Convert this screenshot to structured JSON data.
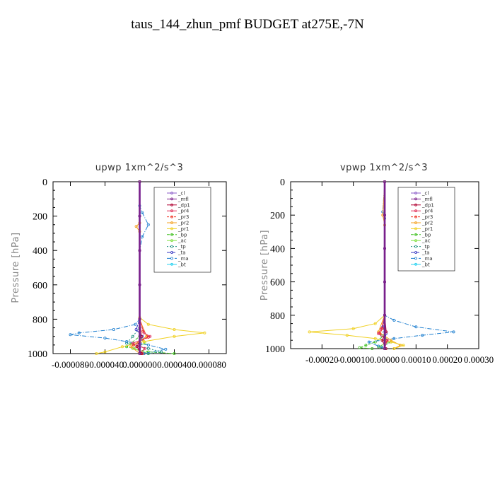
{
  "title": "taus_144_zhun_pmf  BUDGET at275E,-7N",
  "colors": {
    "_cl": "#8b5cc8",
    "_mfl": "#7a1f8a",
    "_dp1": "#b00030",
    "_pr4": "#e0305a",
    "_pr3": "#f03020",
    "_pr2": "#f4a020",
    "_pr1": "#f0d020",
    "_bp": "#40c020",
    "_ac": "#80e040",
    "_tp": "#209080",
    "_ta": "#3030c0",
    "_ma": "#2080d0",
    "_bt": "#20d0f0"
  },
  "chart_data": [
    {
      "type": "line",
      "title": "upwp   1xm^2/s^3",
      "ylabel": "Pressure [hPa]",
      "xlim": [
        -0.0001,
        0.0001
      ],
      "ylim": [
        1000,
        0
      ],
      "y_ticks": [
        0,
        200,
        400,
        600,
        800,
        1000
      ],
      "x_ticks": [
        -8e-05,
        -4e-05,
        0,
        4e-05,
        8e-05
      ],
      "x_tick_labels": [
        "-0.000080",
        "-0.000040",
        "0.000000",
        "0.000040",
        "0.000080"
      ],
      "legend": [
        "_cl",
        "_mfl",
        "_dp1",
        "_pr4",
        "_pr3",
        "_pr2",
        "_pr1",
        "_bp",
        "_ac",
        "_tp",
        "_ta",
        "_ma",
        "_bt"
      ],
      "legend_position": "top-right",
      "series": [
        {
          "name": "_cl",
          "points": [
            [
              0,
              0
            ],
            [
              0,
              200
            ],
            [
              0,
              400
            ],
            [
              0,
              600
            ],
            [
              0,
              800
            ],
            [
              0,
              1000
            ]
          ]
        },
        {
          "name": "_mfl",
          "points": [
            [
              0,
              0
            ],
            [
              0,
              200
            ],
            [
              0,
              400
            ],
            [
              0,
              600
            ],
            [
              0,
              800
            ],
            [
              0,
              1000
            ]
          ]
        },
        {
          "name": "_dp1",
          "points": [
            [
              0,
              0
            ],
            [
              0,
              400
            ],
            [
              0,
              800
            ],
            [
              2e-06,
              900
            ],
            [
              -3e-06,
              960
            ],
            [
              2e-06,
              1000
            ]
          ]
        },
        {
          "name": "_pr4",
          "points": [
            [
              0,
              0
            ],
            [
              0,
              800
            ],
            [
              5e-06,
              880
            ],
            [
              1.2e-05,
              900
            ],
            [
              -8e-06,
              940
            ],
            [
              6e-06,
              970
            ],
            [
              0,
              1000
            ]
          ]
        },
        {
          "name": "_pr3",
          "points": [
            [
              0,
              0
            ],
            [
              0,
              800
            ],
            [
              4e-06,
              870
            ],
            [
              1e-05,
              905
            ],
            [
              -7e-06,
              950
            ],
            [
              3e-06,
              1000
            ]
          ]
        },
        {
          "name": "_pr2",
          "points": [
            [
              0,
              0
            ],
            [
              0,
              240
            ],
            [
              -4e-06,
              260
            ],
            [
              0,
              290
            ],
            [
              0,
              800
            ],
            [
              8e-06,
              900
            ],
            [
              -1e-05,
              960
            ],
            [
              0,
              1000
            ]
          ]
        },
        {
          "name": "_pr1",
          "points": [
            [
              0,
              0
            ],
            [
              0,
              790
            ],
            [
              1e-05,
              830
            ],
            [
              4e-05,
              860
            ],
            [
              7.5e-05,
              880
            ],
            [
              4e-05,
              900
            ],
            [
              5e-06,
              930
            ],
            [
              -2e-05,
              960
            ],
            [
              -4e-05,
              990
            ],
            [
              -5e-05,
              1000
            ]
          ]
        },
        {
          "name": "_bp",
          "points": [
            [
              0,
              0
            ],
            [
              0,
              900
            ],
            [
              -1e-05,
              940
            ],
            [
              -1.5e-05,
              960
            ],
            [
              1e-05,
              990
            ],
            [
              4e-05,
              1000
            ]
          ]
        },
        {
          "name": "_ac",
          "points": [
            [
              0,
              0
            ],
            [
              0,
              900
            ],
            [
              6e-06,
              940
            ],
            [
              -8e-06,
              970
            ],
            [
              1e-05,
              1000
            ]
          ]
        },
        {
          "name": "_tp",
          "points": [
            [
              0,
              0
            ],
            [
              0,
              850
            ],
            [
              -8e-06,
              900
            ],
            [
              -1.5e-05,
              940
            ],
            [
              1e-05,
              970
            ],
            [
              2.5e-05,
              990
            ],
            [
              1e-05,
              1000
            ]
          ]
        },
        {
          "name": "_ta",
          "points": [
            [
              0,
              0
            ],
            [
              0,
              200
            ],
            [
              0,
              800
            ],
            [
              -4e-06,
              860
            ],
            [
              3e-06,
              900
            ],
            [
              0,
              1000
            ]
          ]
        },
        {
          "name": "_ma",
          "points": [
            [
              0,
              0
            ],
            [
              0,
              140
            ],
            [
              3e-06,
              180
            ],
            [
              1e-05,
              250
            ],
            [
              3e-06,
              320
            ],
            [
              0,
              400
            ],
            [
              0,
              800
            ],
            [
              -5e-06,
              830
            ],
            [
              -3e-05,
              860
            ],
            [
              -7e-05,
              880
            ],
            [
              -8e-05,
              890
            ],
            [
              -4e-05,
              910
            ],
            [
              -1.5e-05,
              930
            ],
            [
              1e-05,
              950
            ],
            [
              3e-05,
              975
            ],
            [
              5e-06,
              1000
            ]
          ]
        },
        {
          "name": "_bt",
          "points": [
            [
              0,
              0
            ],
            [
              0,
              1000
            ]
          ]
        }
      ]
    },
    {
      "type": "line",
      "title": "vpwp   1xm^2/s^3",
      "ylabel": "Pressure [hPa]",
      "xlim": [
        -0.0003,
        0.0003
      ],
      "ylim": [
        1000,
        0
      ],
      "y_ticks": [
        0,
        200,
        400,
        600,
        800,
        1000
      ],
      "x_ticks": [
        -0.0002,
        -0.0001,
        0,
        0.0001,
        0.0002,
        0.0003
      ],
      "x_tick_labels": [
        "-0.00020",
        "-0.00010",
        "0.00000",
        "0.00010",
        "0.00020",
        "0.00030"
      ],
      "legend": [
        "_cl",
        "_mfl",
        "_dp1",
        "_pr4",
        "_pr3",
        "_pr2",
        "_pr1",
        "_bp",
        "_ac",
        "_tp",
        "_ta",
        "_ma",
        "_bt"
      ],
      "legend_position": "top-right",
      "series": [
        {
          "name": "_cl",
          "points": [
            [
              0,
              0
            ],
            [
              0,
              200
            ],
            [
              0,
              400
            ],
            [
              0,
              600
            ],
            [
              0,
              800
            ],
            [
              0,
              1000
            ]
          ]
        },
        {
          "name": "_mfl",
          "points": [
            [
              0,
              0
            ],
            [
              0,
              200
            ],
            [
              0,
              400
            ],
            [
              0,
              600
            ],
            [
              0,
              800
            ],
            [
              0,
              1000
            ]
          ]
        },
        {
          "name": "_dp1",
          "points": [
            [
              0,
              0
            ],
            [
              0,
              800
            ],
            [
              5e-06,
              900
            ],
            [
              -8e-06,
              950
            ],
            [
              4e-06,
              1000
            ]
          ]
        },
        {
          "name": "_pr4",
          "points": [
            [
              0,
              0
            ],
            [
              0,
              800
            ],
            [
              -1e-05,
              880
            ],
            [
              -2e-05,
              910
            ],
            [
              8e-06,
              950
            ],
            [
              0,
              1000
            ]
          ]
        },
        {
          "name": "_pr3",
          "points": [
            [
              0,
              0
            ],
            [
              0,
              800
            ],
            [
              -8e-06,
              880
            ],
            [
              -1.5e-05,
              910
            ],
            [
              6e-06,
              950
            ],
            [
              0,
              1000
            ]
          ]
        },
        {
          "name": "_pr2",
          "points": [
            [
              0,
              0
            ],
            [
              -6e-06,
              200
            ],
            [
              0,
              260
            ],
            [
              0,
              800
            ],
            [
              -2e-05,
              900
            ],
            [
              2e-05,
              950
            ],
            [
              5e-05,
              980
            ],
            [
              3e-05,
              1000
            ]
          ]
        },
        {
          "name": "_pr1",
          "points": [
            [
              0,
              0
            ],
            [
              0,
              800
            ],
            [
              -3e-05,
              850
            ],
            [
              -0.0001,
              880
            ],
            [
              -0.00024,
              900
            ],
            [
              -0.00012,
              920
            ],
            [
              -3e-05,
              940
            ],
            [
              2e-05,
              960
            ],
            [
              6e-05,
              980
            ],
            [
              3e-05,
              1000
            ]
          ]
        },
        {
          "name": "_bp",
          "points": [
            [
              0,
              0
            ],
            [
              0,
              920
            ],
            [
              -3e-05,
              960
            ],
            [
              -6e-05,
              980
            ],
            [
              -8e-05,
              995
            ],
            [
              -4e-05,
              1000
            ]
          ]
        },
        {
          "name": "_ac",
          "points": [
            [
              0,
              0
            ],
            [
              0,
              920
            ],
            [
              1e-05,
              960
            ],
            [
              -2e-05,
              990
            ],
            [
              0,
              1000
            ]
          ]
        },
        {
          "name": "_tp",
          "points": [
            [
              0,
              0
            ],
            [
              0,
              880
            ],
            [
              -1e-05,
              920
            ],
            [
              2e-05,
              960
            ],
            [
              -1e-05,
              990
            ],
            [
              0,
              1000
            ]
          ]
        },
        {
          "name": "_ta",
          "points": [
            [
              0,
              0
            ],
            [
              0,
              800
            ],
            [
              -6e-06,
              870
            ],
            [
              4e-06,
              910
            ],
            [
              0,
              1000
            ]
          ]
        },
        {
          "name": "_ma",
          "points": [
            [
              0,
              0
            ],
            [
              -6e-06,
              180
            ],
            [
              0,
              220
            ],
            [
              0,
              800
            ],
            [
              3e-05,
              830
            ],
            [
              0.0001,
              870
            ],
            [
              0.00022,
              900
            ],
            [
              0.00012,
              920
            ],
            [
              3e-05,
              940
            ],
            [
              -5e-05,
              960
            ],
            [
              -2e-05,
              985
            ],
            [
              0,
              1000
            ]
          ]
        },
        {
          "name": "_bt",
          "points": [
            [
              0,
              0
            ],
            [
              0,
              1000
            ]
          ]
        }
      ]
    }
  ]
}
